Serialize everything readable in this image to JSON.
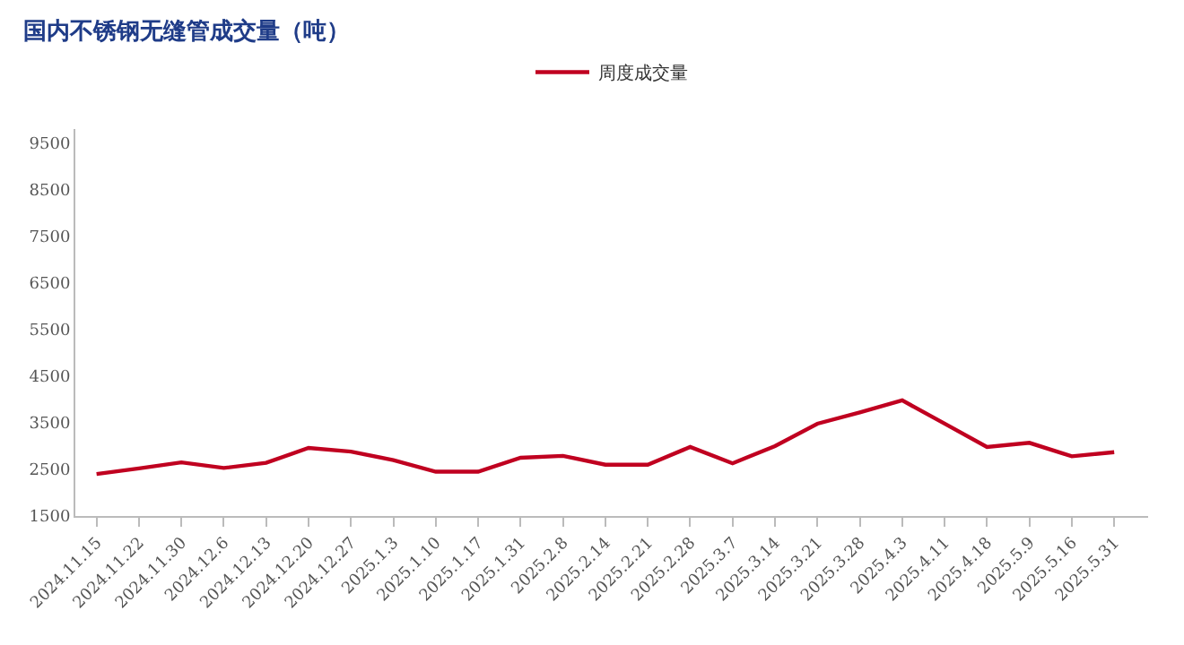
{
  "chart_data": {
    "type": "line",
    "title": "国内不锈钢无缝管成交量（吨）",
    "categories": [
      "2024.11.15",
      "2024.11.22",
      "2024.11.30",
      "2024.12.6",
      "2024.12.13",
      "2024.12.20",
      "2024.12.27",
      "2025.1.3",
      "2025.1.10",
      "2025.1.17",
      "2025.1.31",
      "2025.2.8",
      "2025.2.14",
      "2025.2.21",
      "2025.2.28",
      "2025.3.7",
      "2025.3.14",
      "2025.3.21",
      "2025.3.28",
      "2025.4.3",
      "2025.4.11",
      "2025.4.18",
      "2025.5.9",
      "2025.5.16",
      "2025.5.31"
    ],
    "series": [
      {
        "name": "周度成交量",
        "color": "#c00020",
        "values": [
          2400,
          2520,
          2650,
          2530,
          2640,
          2960,
          2880,
          2700,
          2450,
          2450,
          2750,
          2790,
          2600,
          2600,
          2980,
          2630,
          3000,
          3480,
          3720,
          3980,
          3480,
          2980,
          3070,
          2780,
          2870
        ]
      }
    ],
    "ylim": [
      1500,
      9800
    ],
    "yticks": [
      1500,
      2500,
      3500,
      4500,
      5500,
      6500,
      7500,
      8500,
      9500
    ],
    "legend": "top",
    "marker": "none",
    "line_style": "solid"
  }
}
